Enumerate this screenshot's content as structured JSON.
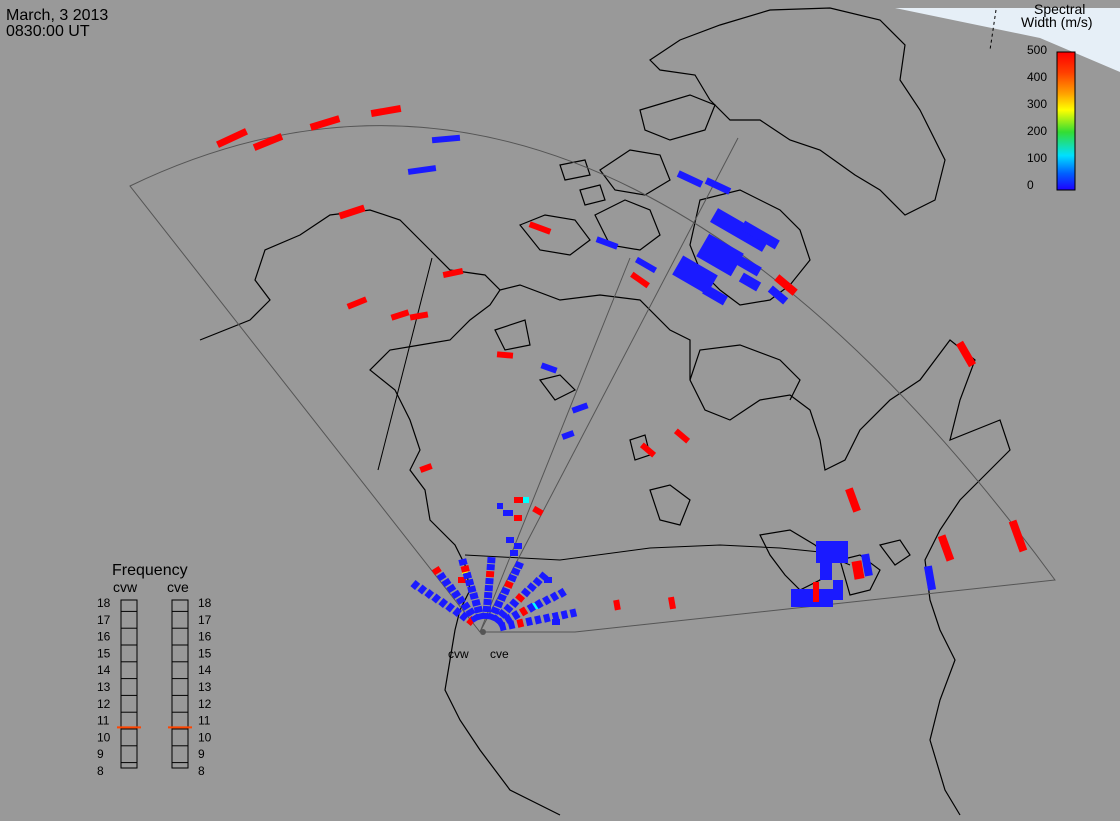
{
  "header": {
    "date": "March, 3 2013",
    "time": "0830:00 UT"
  },
  "colorbar": {
    "title_line1": "Spectral",
    "title_line2": "Width (m/s)",
    "ticks": [
      "500",
      "400",
      "300",
      "200",
      "100",
      "0"
    ],
    "colors": [
      "#ff0000",
      "#ff8c00",
      "#ffd700",
      "#33cc33",
      "#00e0ff",
      "#0040ff",
      "#1e00ff"
    ]
  },
  "radars": {
    "west": "cvw",
    "east": "cve"
  },
  "frequency": {
    "title": "Frequency",
    "col_west": "cvw",
    "col_east": "cve",
    "levels": [
      "18",
      "17",
      "16",
      "15",
      "14",
      "13",
      "12",
      "11",
      "10",
      "9",
      "8"
    ],
    "cvw_mhz": 10.6,
    "cve_mhz": 10.6
  },
  "colors": {
    "background": "#999999",
    "ocean_shading": "#e6eff7",
    "marker": "#ff4500",
    "red": "#ff0000",
    "blue": "#1a1aff",
    "cyan": "#00ffff",
    "yellow": "#ffff00"
  }
}
